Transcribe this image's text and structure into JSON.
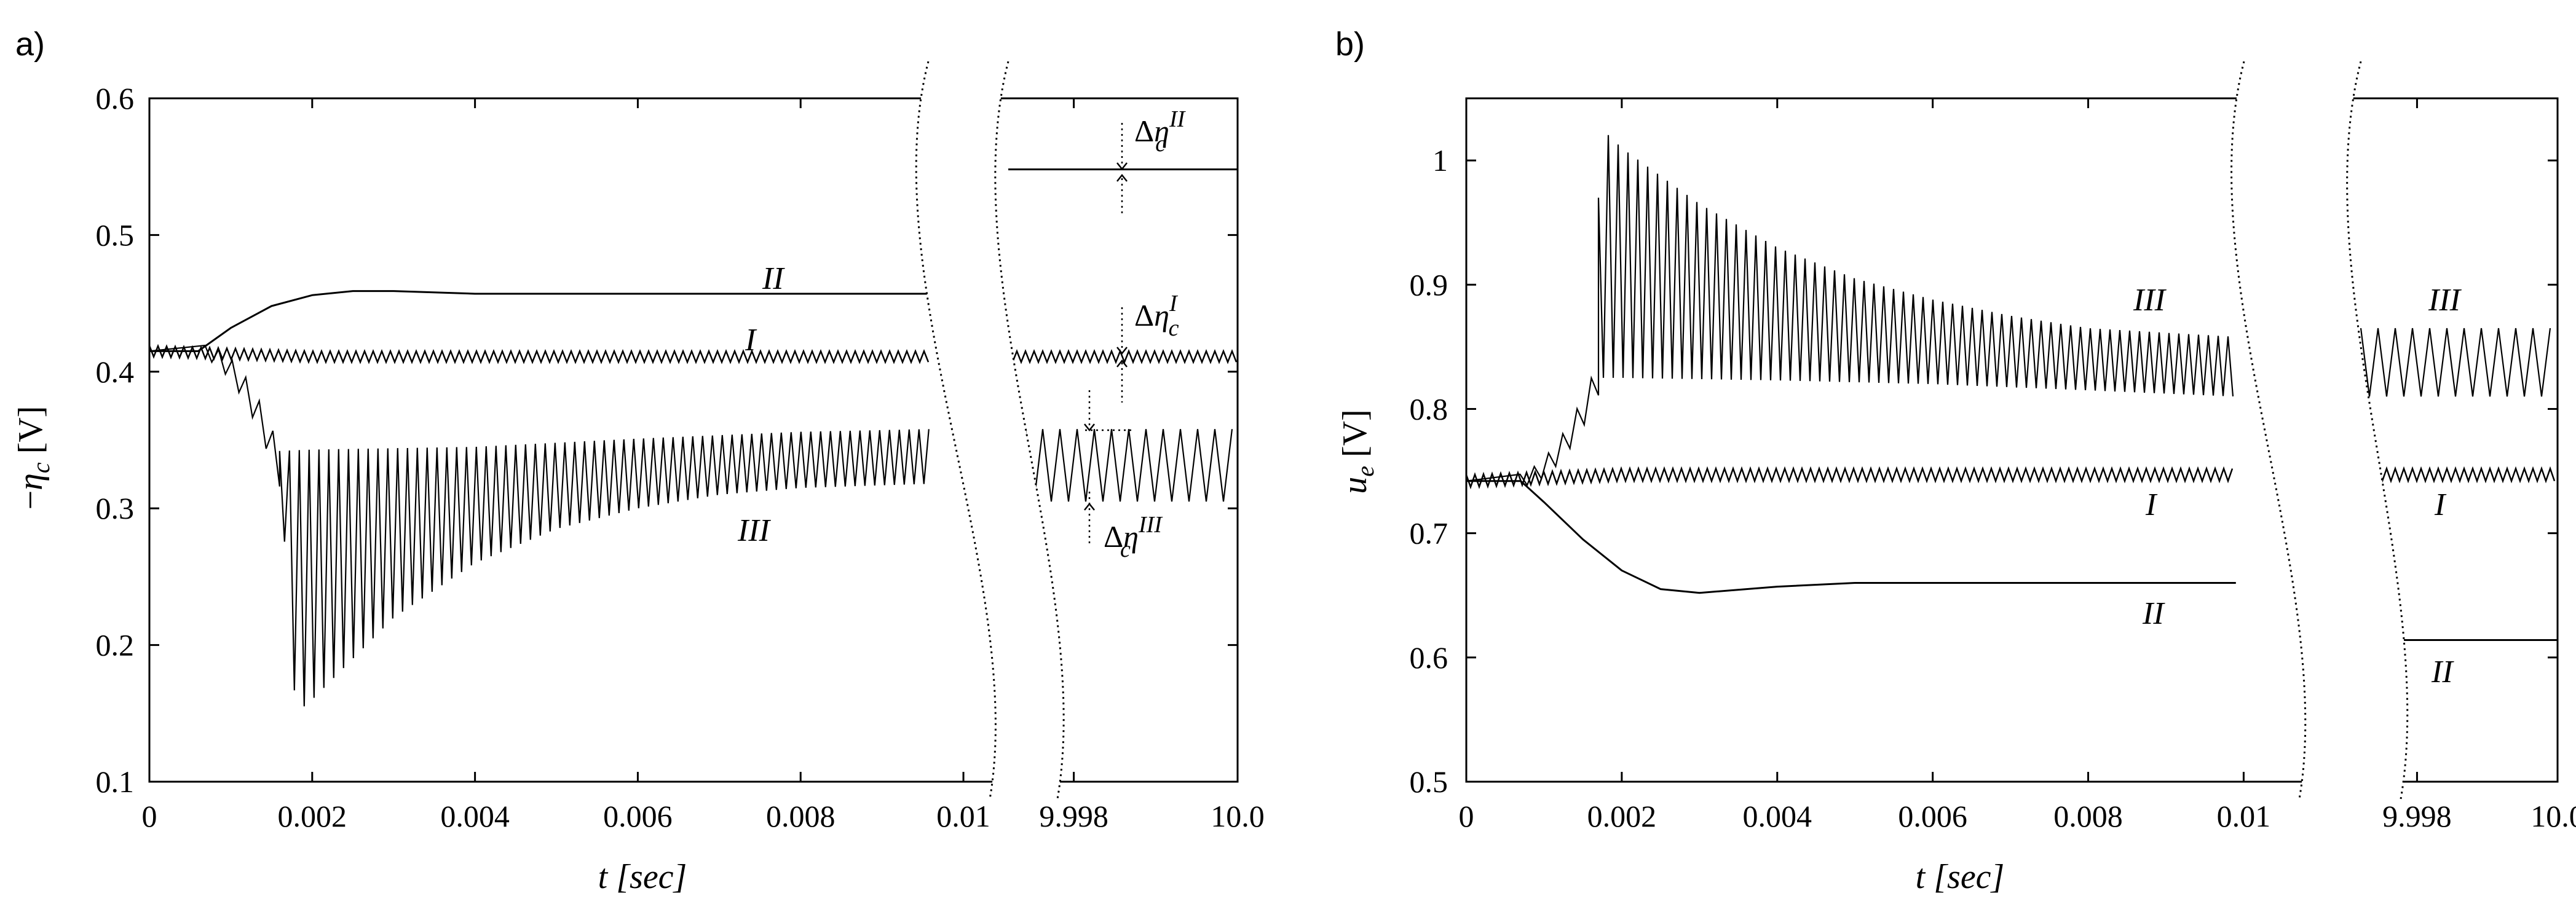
{
  "chart_data": [
    {
      "type": "line",
      "panel_label": "a)",
      "xlabel": "t [sec]",
      "ylabel": "−η_c [V]",
      "ylabel_parts": {
        "sign": "−",
        "symbol": "η",
        "sub": "c",
        "unit": " [V]"
      },
      "ylim": [
        0.1,
        0.6
      ],
      "yticks": [
        "0.1",
        "0.2",
        "0.3",
        "0.4",
        "0.5",
        "0.6"
      ],
      "ytick_values": [
        0.1,
        0.2,
        0.3,
        0.4,
        0.5,
        0.6
      ],
      "segment1": {
        "xlim": [
          0,
          0.0104
        ],
        "xticks": [
          "0",
          "0.002",
          "0.004",
          "0.006",
          "0.008",
          "0.01"
        ],
        "xtick_values": [
          0,
          0.002,
          0.004,
          0.006,
          0.008,
          0.01
        ]
      },
      "segment2": {
        "xlim": [
          9.9972,
          10.0
        ],
        "xticks": [
          "9.998",
          "10.0"
        ],
        "xtick_values": [
          9.998,
          10.0
        ]
      },
      "axis_break": true,
      "initial_value": 0.415,
      "series": [
        {
          "name": "I",
          "label": "I",
          "early": {
            "x": [
              0,
              0.002,
              0.004,
              0.006,
              0.008,
              0.0096
            ],
            "y": [
              0.415,
              0.411,
              0.411,
              0.411,
              0.411,
              0.411
            ]
          },
          "ripple": 0.004,
          "steady": 0.411,
          "steady_ripple": 0.004
        },
        {
          "name": "II",
          "label": "II",
          "early": {
            "x": [
              0,
              0.0006,
              0.001,
              0.0015,
              0.002,
              0.0025,
              0.003,
              0.004,
              0.005,
              0.006,
              0.008,
              0.0096
            ],
            "y": [
              0.415,
              0.415,
              0.432,
              0.448,
              0.456,
              0.459,
              0.459,
              0.457,
              0.457,
              0.457,
              0.457,
              0.457
            ]
          },
          "steady": 0.548
        },
        {
          "name": "III",
          "label": "III",
          "upper": {
            "x": [
              0.0016,
              0.002,
              0.004,
              0.006,
              0.008,
              0.0096
            ],
            "y": [
              0.342,
              0.343,
              0.345,
              0.351,
              0.356,
              0.358
            ]
          },
          "lower": {
            "x": [
              0.0016,
              0.0018,
              0.002,
              0.003,
              0.004,
              0.005,
              0.006,
              0.007,
              0.008,
              0.0096
            ],
            "y": [
              0.33,
              0.15,
              0.16,
              0.22,
              0.26,
              0.285,
              0.3,
              0.31,
              0.315,
              0.318
            ]
          },
          "steady_max": 0.358,
          "steady_min": 0.305
        }
      ],
      "annotations": [
        {
          "label": "Δη_c^II",
          "parts": {
            "d": "Δ",
            "sym": "η",
            "sub": "c",
            "sup": "II"
          }
        },
        {
          "label": "Δη_c^I",
          "parts": {
            "d": "Δ",
            "sym": "η",
            "sub": "c",
            "sup": "I"
          }
        },
        {
          "label": "Δη_c^III",
          "parts": {
            "d": "Δ",
            "sym": "η",
            "sub": "c",
            "sup": "III"
          }
        }
      ]
    },
    {
      "type": "line",
      "panel_label": "b)",
      "xlabel": "t [sec]",
      "ylabel": "u_e [V]",
      "ylabel_parts": {
        "symbol": "u",
        "sub": "e",
        "unit": " [V]"
      },
      "ylim": [
        0.5,
        1.05
      ],
      "yticks": [
        "0.5",
        "0.6",
        "0.7",
        "0.8",
        "0.9",
        "1"
      ],
      "ytick_values": [
        0.5,
        0.6,
        0.7,
        0.8,
        0.9,
        1.0
      ],
      "segment1": {
        "xlim": [
          0,
          0.0104
        ],
        "xticks": [
          "0",
          "0.002",
          "0.004",
          "0.006",
          "0.008",
          "0.01"
        ],
        "xtick_values": [
          0,
          0.002,
          0.004,
          0.006,
          0.008,
          0.01
        ]
      },
      "segment2": {
        "xlim": [
          9.9972,
          10.0
        ],
        "xticks": [
          "9.998",
          "10.0"
        ],
        "xtick_values": [
          9.998,
          10.0
        ]
      },
      "axis_break": true,
      "initial_value": 0.742,
      "series": [
        {
          "name": "I",
          "label": "I",
          "early": {
            "x": [
              0,
              0.002,
              0.004,
              0.006,
              0.008,
              0.0099
            ],
            "y": [
              0.742,
              0.747,
              0.747,
              0.747,
              0.747,
              0.747
            ]
          },
          "ripple": 0.005,
          "steady": 0.747,
          "steady_ripple": 0.005
        },
        {
          "name": "II",
          "label": "II",
          "early": {
            "x": [
              0,
              0.0007,
              0.001,
              0.0015,
              0.002,
              0.0025,
              0.003,
              0.004,
              0.005,
              0.006,
              0.008,
              0.0099
            ],
            "y": [
              0.742,
              0.742,
              0.725,
              0.695,
              0.67,
              0.655,
              0.652,
              0.657,
              0.66,
              0.66,
              0.66,
              0.66
            ]
          },
          "steady": 0.614
        },
        {
          "name": "III",
          "label": "III",
          "upper": {
            "x": [
              0.0017,
              0.0018,
              0.002,
              0.003,
              0.004,
              0.005,
              0.006,
              0.007,
              0.008,
              0.0099
            ],
            "y": [
              0.97,
              1.022,
              1.01,
              0.965,
              0.93,
              0.905,
              0.888,
              0.875,
              0.865,
              0.858
            ]
          },
          "lower": {
            "x": [
              0.0017,
              0.002,
              0.004,
              0.006,
              0.008,
              0.0099
            ],
            "y": [
              0.825,
              0.825,
              0.823,
              0.82,
              0.815,
              0.81
            ]
          },
          "steady_max": 0.865,
          "steady_min": 0.81
        }
      ],
      "annotations": []
    }
  ]
}
